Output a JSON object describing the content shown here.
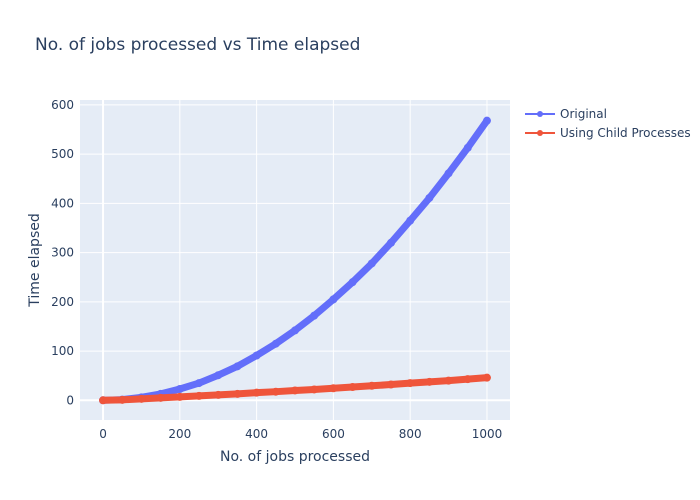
{
  "chart_data": {
    "type": "line",
    "title": "No. of jobs processed vs Time elapsed",
    "xlabel": "No. of jobs processed",
    "ylabel": "Time elapsed",
    "xlim": [
      -60,
      1060
    ],
    "ylim": [
      -40,
      610
    ],
    "xticks": [
      0,
      200,
      400,
      600,
      800,
      1000
    ],
    "yticks": [
      0,
      100,
      200,
      300,
      400,
      500,
      600
    ],
    "xtick_labels": [
      "0",
      "200",
      "400",
      "600",
      "800",
      "1000"
    ],
    "ytick_labels": [
      "0",
      "100",
      "200",
      "300",
      "400",
      "500",
      "600"
    ],
    "grid": true,
    "legend_position": "top-right",
    "series": [
      {
        "name": "Original",
        "color": "#636efa",
        "x": [
          0,
          50,
          100,
          150,
          200,
          250,
          300,
          350,
          400,
          450,
          500,
          550,
          600,
          650,
          700,
          750,
          800,
          850,
          900,
          950,
          1000
        ],
        "y": [
          0,
          1.5,
          6,
          13,
          23,
          35,
          51,
          69,
          91,
          115,
          142,
          172,
          205,
          240,
          278,
          320,
          365,
          411,
          461,
          513,
          568
        ]
      },
      {
        "name": "Using Child Processes",
        "color": "#ef553b",
        "x": [
          0,
          50,
          100,
          150,
          200,
          250,
          300,
          350,
          400,
          450,
          500,
          550,
          600,
          650,
          700,
          750,
          800,
          850,
          900,
          950,
          1000
        ],
        "y": [
          0,
          1,
          3,
          5,
          7,
          9,
          11,
          13,
          15.5,
          17.5,
          20,
          22,
          24.5,
          27,
          29.5,
          32,
          35,
          37.5,
          40,
          43,
          46
        ]
      }
    ]
  }
}
